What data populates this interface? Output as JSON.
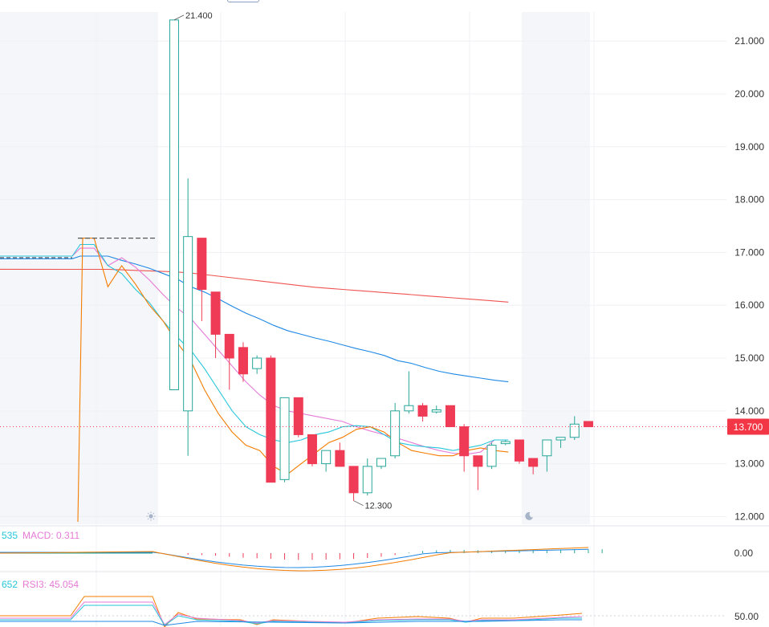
{
  "chart_data": {
    "type": "candlestick",
    "y_axis": {
      "ticks": [
        "21.000",
        "20.000",
        "19.000",
        "18.000",
        "17.000",
        "16.000",
        "15.000",
        "14.000",
        "13.000",
        "12.000"
      ],
      "range": [
        11.9,
        21.55
      ]
    },
    "last_price": "13.700",
    "high_annotation": "21.400",
    "low_annotation": "12.300",
    "candles": [
      {
        "o": 17.27,
        "h": 17.27,
        "l": 17.27,
        "c": 17.27
      },
      {
        "o": 14.4,
        "h": 21.4,
        "l": 14.4,
        "c": 21.4
      },
      {
        "o": 14.0,
        "h": 18.4,
        "l": 13.15,
        "c": 17.3
      },
      {
        "o": 17.27,
        "h": 17.27,
        "l": 15.7,
        "c": 16.3
      },
      {
        "o": 16.25,
        "h": 16.25,
        "l": 15.0,
        "c": 15.45
      },
      {
        "o": 15.45,
        "h": 15.45,
        "l": 14.4,
        "c": 15.0
      },
      {
        "o": 15.2,
        "h": 15.3,
        "l": 14.55,
        "c": 14.7
      },
      {
        "o": 14.8,
        "h": 15.05,
        "l": 14.7,
        "c": 15.0
      },
      {
        "o": 15.0,
        "h": 15.05,
        "l": 12.65,
        "c": 12.65
      },
      {
        "o": 12.7,
        "h": 14.25,
        "l": 12.65,
        "c": 14.25
      },
      {
        "o": 14.25,
        "h": 14.25,
        "l": 13.5,
        "c": 13.55
      },
      {
        "o": 13.55,
        "h": 13.55,
        "l": 12.95,
        "c": 13.0
      },
      {
        "o": 13.0,
        "h": 13.25,
        "l": 12.85,
        "c": 13.25
      },
      {
        "o": 13.25,
        "h": 13.4,
        "l": 12.95,
        "c": 12.95
      },
      {
        "o": 12.95,
        "h": 12.95,
        "l": 12.3,
        "c": 12.45
      },
      {
        "o": 12.45,
        "h": 13.1,
        "l": 12.4,
        "c": 12.95
      },
      {
        "o": 12.95,
        "h": 13.1,
        "l": 12.9,
        "c": 13.1
      },
      {
        "o": 13.15,
        "h": 14.15,
        "l": 13.1,
        "c": 14.0
      },
      {
        "o": 14.0,
        "h": 14.75,
        "l": 13.95,
        "c": 14.1
      },
      {
        "o": 14.1,
        "h": 14.15,
        "l": 13.8,
        "c": 13.9
      },
      {
        "o": 13.98,
        "h": 14.1,
        "l": 13.95,
        "c": 14.02
      },
      {
        "o": 14.1,
        "h": 14.1,
        "l": 13.7,
        "c": 13.7
      },
      {
        "o": 13.7,
        "h": 13.75,
        "l": 12.85,
        "c": 13.15
      },
      {
        "o": 13.15,
        "h": 13.15,
        "l": 12.5,
        "c": 12.95
      },
      {
        "o": 12.95,
        "h": 13.4,
        "l": 12.9,
        "c": 13.35
      },
      {
        "o": 13.38,
        "h": 13.45,
        "l": 13.35,
        "c": 13.42
      },
      {
        "o": 13.45,
        "h": 13.45,
        "l": 13.0,
        "c": 13.05
      },
      {
        "o": 13.1,
        "h": 13.1,
        "l": 12.8,
        "c": 12.95
      },
      {
        "o": 13.15,
        "h": 13.45,
        "l": 12.85,
        "c": 13.45
      },
      {
        "o": 13.45,
        "h": 13.5,
        "l": 13.3,
        "c": 13.5
      },
      {
        "o": 13.5,
        "h": 13.9,
        "l": 13.45,
        "c": 13.75
      },
      {
        "o": 13.8,
        "h": 13.8,
        "l": 13.7,
        "c": 13.7
      }
    ],
    "moving_averages": [
      {
        "color": "#ef5350",
        "values": [
          16.68,
          16.68,
          16.68,
          16.67,
          16.66,
          16.65,
          16.64,
          16.63,
          16.61,
          16.58,
          16.55,
          16.52,
          16.49,
          16.46,
          16.43,
          16.4,
          16.37,
          16.34,
          16.32,
          16.3,
          16.28,
          16.26,
          16.24,
          16.22,
          16.2,
          16.18,
          16.16,
          16.14,
          16.12,
          16.1,
          16.08,
          16.06
        ]
      },
      {
        "color": "#1e88e5",
        "values": [
          16.93,
          16.93,
          16.93,
          16.85,
          16.78,
          16.7,
          16.6,
          16.5,
          16.35,
          16.25,
          16.12,
          15.98,
          15.85,
          15.74,
          15.62,
          15.52,
          15.45,
          15.38,
          15.32,
          15.25,
          15.18,
          15.12,
          15.05,
          14.95,
          14.9,
          14.82,
          14.75,
          14.7,
          14.66,
          14.62,
          14.58,
          14.55
        ]
      },
      {
        "color": "#e57ad6",
        "values": [
          17.08,
          17.08,
          16.75,
          16.9,
          16.72,
          16.48,
          16.2,
          15.95,
          15.75,
          15.45,
          15.15,
          14.85,
          14.55,
          14.3,
          14.1,
          14.0,
          13.95,
          13.9,
          13.85,
          13.8,
          13.7,
          13.62,
          13.55,
          13.48,
          13.4,
          13.32,
          13.25,
          13.2,
          13.18,
          13.22,
          13.45,
          13.45
        ]
      },
      {
        "color": "#26c6da",
        "values": [
          17.15,
          17.15,
          16.75,
          16.6,
          16.3,
          16.05,
          15.7,
          15.4,
          15.15,
          14.8,
          14.4,
          14.0,
          13.7,
          13.55,
          13.45,
          13.4,
          13.45,
          13.55,
          13.6,
          13.7,
          13.72,
          13.7,
          13.55,
          13.4,
          13.35,
          13.32,
          13.3,
          13.25,
          13.3,
          13.35,
          13.45,
          13.45
        ]
      },
      {
        "color": "#f57c00",
        "values": [
          17.27,
          17.27,
          16.35,
          16.75,
          16.4,
          16.0,
          15.7,
          15.3,
          14.95,
          14.4,
          13.95,
          13.6,
          13.35,
          13.25,
          12.95,
          12.8,
          13.0,
          13.2,
          13.4,
          13.5,
          13.65,
          13.7,
          13.6,
          13.4,
          13.25,
          13.2,
          13.15,
          13.15,
          13.25,
          13.3,
          13.25,
          13.22
        ]
      }
    ],
    "macd": {
      "label": "MACD: 0.311",
      "prev_label": "535",
      "zero_tick": "0.00",
      "hist": [
        0,
        -0.25,
        -0.3,
        -0.4,
        -0.55,
        -0.7,
        -0.8,
        -0.9,
        -1.0,
        -1.05,
        -1.05,
        -1.0,
        -0.95,
        -0.9,
        -0.75,
        -0.55,
        -0.3,
        0.1,
        0.35,
        0.45,
        0.5,
        0.5,
        0.45,
        0.4,
        0.45,
        0.5,
        0.5,
        0.5,
        0.55,
        0.6,
        0.6,
        0.6
      ]
    },
    "rsi": {
      "label": "RSI3: 45.054",
      "prev_label": "652",
      "tick": "50.00"
    }
  },
  "icons": {
    "sun": "sun-icon",
    "moon": "moon-icon"
  }
}
